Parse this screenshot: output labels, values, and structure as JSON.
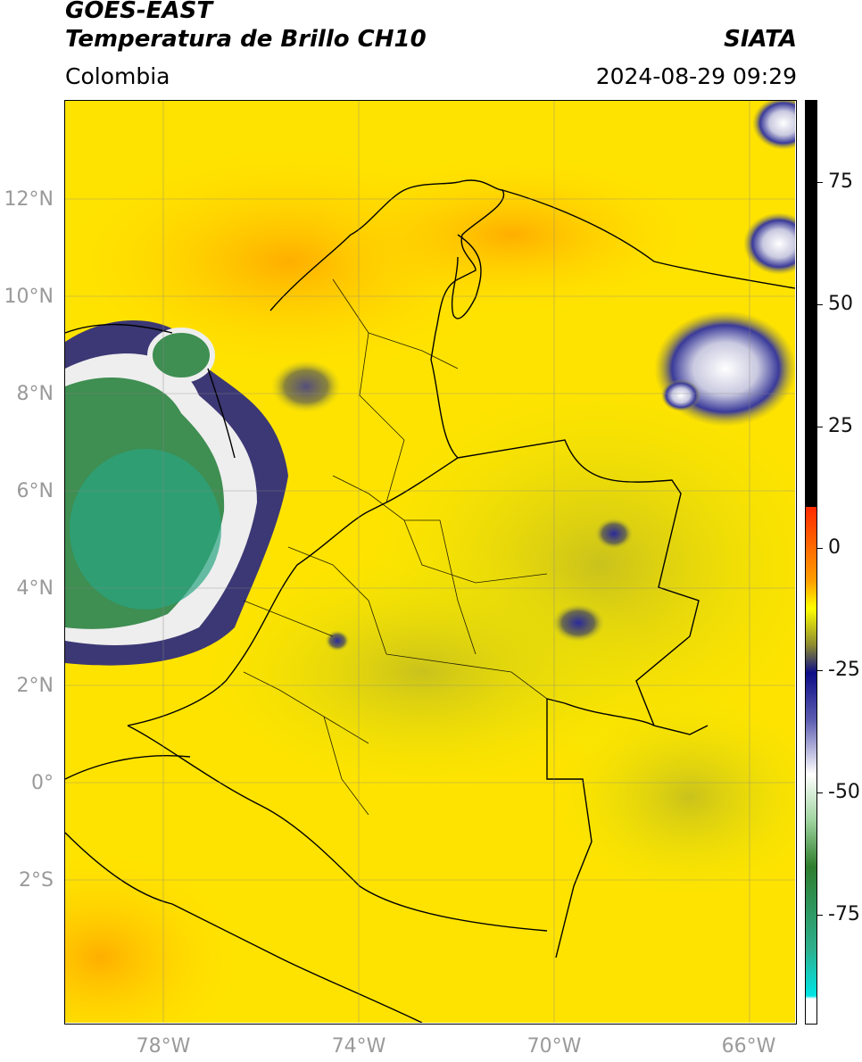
{
  "header": {
    "satellite": "GOES-EAST",
    "product": "Temperatura de Brillo CH10",
    "brand": "SIATA",
    "region": "Colombia",
    "datetime": "2024-08-29 09:29"
  },
  "axes": {
    "lat_labels": [
      "12°N",
      "10°N",
      "8°N",
      "6°N",
      "4°N",
      "2°N",
      "0°",
      "2°S"
    ],
    "lon_labels": [
      "78°W",
      "74°W",
      "70°W",
      "66°W"
    ]
  },
  "colorbar": {
    "ticks": [
      "75",
      "50",
      "25",
      "0",
      "-25",
      "-50",
      "-75"
    ],
    "colors": {
      "black": "#000000",
      "red": "#ff2a00",
      "orange": "#ff9e00",
      "yellow": "#ffff00",
      "olive": "#8c8a30",
      "navy": "#0d0d88",
      "white": "#ffffff",
      "green": "#2e7d2e",
      "teal": "#2cb08e",
      "cyan": "#00e5e5"
    }
  },
  "map": {
    "colors": {
      "sea": "#ffe000",
      "warm": "#ffb000",
      "land": "#f0e800",
      "olive": "#c7c21a",
      "cloud_navy": "#1a1a8a",
      "cloud_white": "#f2f2f2",
      "cloud_green": "#3f8e52",
      "cloud_teal": "#2aa582"
    }
  }
}
